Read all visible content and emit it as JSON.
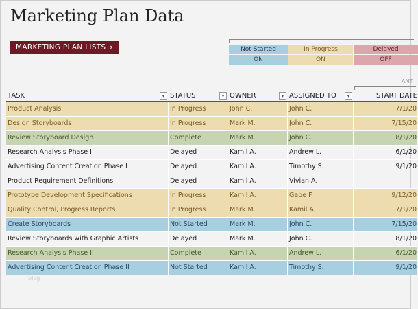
{
  "title": "Marketing Plan Data",
  "button": {
    "label": "MARKETING PLAN LISTS",
    "chevron": "›"
  },
  "legend": [
    {
      "label": "Not Started",
      "value": "ON"
    },
    {
      "label": "In Progress",
      "value": "ON"
    },
    {
      "label": "Delayed",
      "value": "OFF"
    }
  ],
  "colors": {
    "in_progress": "#ecdcb0",
    "complete": "#c6d4b2",
    "not_started": "#a8cfe0",
    "delayed": "#dca6ac",
    "button": "#6e1a24"
  },
  "section_label": "ANT",
  "columns": [
    "TASK",
    "STATUS",
    "OWNER",
    "ASSIGNED TO",
    "START DATE"
  ],
  "rows": [
    [
      "Product Analysis",
      "In Progress",
      "John C.",
      "John C.",
      "7/1/20"
    ],
    [
      "Design Storyboards",
      "In Progress",
      "Mark M.",
      "John C.",
      "7/15/20"
    ],
    [
      "Review Storyboard Design",
      "Complete",
      "Mark M.",
      "John C.",
      "8/1/20"
    ],
    [
      "Research Analysis Phase I",
      "Delayed",
      "Kamil A.",
      "Andrew L.",
      "6/1/20"
    ],
    [
      "Advertising Content Creation Phase I",
      "Delayed",
      "Kamil A.",
      "Timothy S.",
      "9/1/20"
    ],
    [
      "Product Requirement Definitions",
      "Delayed",
      "Kamil A.",
      "Vivian A.",
      ""
    ],
    [
      "Prototype Development Specifications",
      "In Progress",
      "Kamil A.",
      "Gabe F.",
      "9/12/20"
    ],
    [
      "Quality Control, Progress Reports",
      "In Progress",
      "Mark M.",
      "Kamil A.",
      "7/1/20"
    ],
    [
      "Create Storyboards",
      "Not Started",
      "Mark M.",
      "John C.",
      "7/15/20"
    ],
    [
      "Review Storyboards with Graphic Artists",
      "Delayed",
      "Mark M.",
      "John C.",
      "8/1/20"
    ],
    [
      "Research Analysis Phase II",
      "Complete",
      "Kamil A.",
      "Andrew L.",
      "6/1/20"
    ],
    [
      "Advertising Content Creation Phase II",
      "Not Started",
      "Kamil A.",
      "Timothy S.",
      "9/1/20"
    ]
  ],
  "watermark": "blog"
}
